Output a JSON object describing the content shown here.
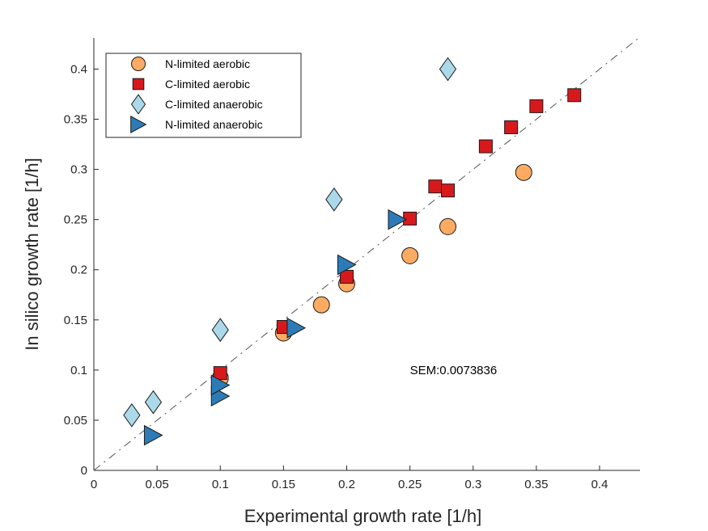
{
  "chart_data": {
    "type": "scatter",
    "title": "",
    "xlabel": "Experimental growth rate [1/h]",
    "ylabel": "In silico growth rate [1/h]",
    "xlim": [
      0,
      0.432
    ],
    "ylim": [
      0,
      0.431
    ],
    "xticks": [
      0,
      0.05,
      0.1,
      0.15,
      0.2,
      0.25,
      0.3,
      0.35,
      0.4
    ],
    "xtick_labels": [
      "0",
      "0.05",
      "0.1",
      "0.15",
      "0.2",
      "0.25",
      "0.3",
      "0.35",
      "0.4"
    ],
    "yticks": [
      0,
      0.05,
      0.1,
      0.15,
      0.2,
      0.25,
      0.3,
      0.35,
      0.4
    ],
    "ytick_labels": [
      "0",
      "0.05",
      "0.1",
      "0.15",
      "0.2",
      "0.25",
      "0.3",
      "0.35",
      "0.4"
    ],
    "grid": false,
    "legend_position": "top-left",
    "reference_line": {
      "type": "y=x",
      "style": "dash-dot",
      "color": "#555555"
    },
    "annotation": {
      "text": "SEM:0.0073836",
      "x": 0.25,
      "y": 0.1
    },
    "series": [
      {
        "name": "N-limited aerobic",
        "marker": "circle",
        "color": "#FDAB63",
        "points": [
          [
            0.1,
            0.092
          ],
          [
            0.15,
            0.137
          ],
          [
            0.18,
            0.165
          ],
          [
            0.2,
            0.186
          ],
          [
            0.25,
            0.214
          ],
          [
            0.28,
            0.243
          ],
          [
            0.34,
            0.297
          ]
        ]
      },
      {
        "name": "C-limited aerobic",
        "marker": "square",
        "color": "#D7191C",
        "points": [
          [
            0.1,
            0.097
          ],
          [
            0.15,
            0.143
          ],
          [
            0.2,
            0.193
          ],
          [
            0.25,
            0.251
          ],
          [
            0.27,
            0.283
          ],
          [
            0.28,
            0.279
          ],
          [
            0.31,
            0.323
          ],
          [
            0.33,
            0.342
          ],
          [
            0.35,
            0.363
          ],
          [
            0.38,
            0.374
          ]
        ]
      },
      {
        "name": "C-limited anaerobic",
        "marker": "diamond",
        "color": "#ABD9E9",
        "points": [
          [
            0.03,
            0.055
          ],
          [
            0.047,
            0.068
          ],
          [
            0.1,
            0.14
          ],
          [
            0.19,
            0.27
          ],
          [
            0.28,
            0.4
          ]
        ]
      },
      {
        "name": "N-limited anaerobic",
        "marker": "triangle-right",
        "color": "#2C7BB6",
        "points": [
          [
            0.047,
            0.035
          ],
          [
            0.1,
            0.074
          ],
          [
            0.1,
            0.085
          ],
          [
            0.16,
            0.142
          ],
          [
            0.2,
            0.205
          ],
          [
            0.24,
            0.25
          ]
        ]
      }
    ]
  }
}
